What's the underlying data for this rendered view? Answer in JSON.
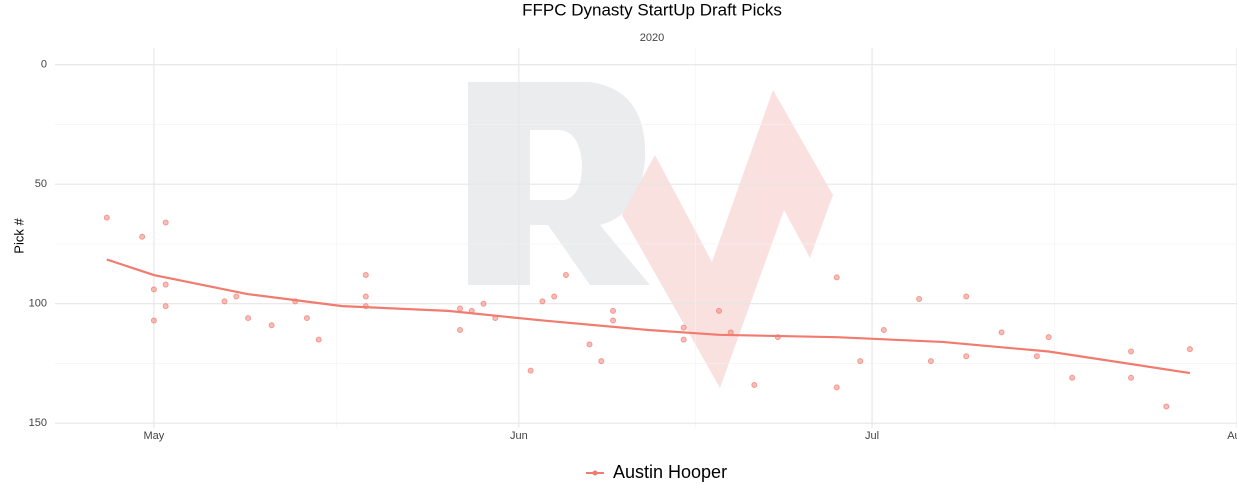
{
  "chart_data": {
    "type": "scatter",
    "title": "FFPC Dynasty StartUp Draft Picks",
    "subtitle": "2020",
    "y_label": "Pick #",
    "xlim": [
      113.6,
      214
    ],
    "xticks": [
      {
        "value": 122,
        "label": "May"
      },
      {
        "value": 153,
        "label": "Jun"
      },
      {
        "value": 183,
        "label": "Jul"
      },
      {
        "value": 214,
        "label": "Aug"
      }
    ],
    "ylim": [
      -7,
      152
    ],
    "yticks": [
      0,
      50,
      100,
      150
    ],
    "y_reversed": true,
    "grid": true,
    "legend": "bottom",
    "series": [
      {
        "name": "Austin Hooper",
        "color": "#f07b6e",
        "x": [
          118,
          121,
          122,
          122,
          123,
          123,
          123,
          128,
          129,
          130,
          132,
          134,
          135,
          136,
          140,
          140,
          140,
          148,
          148,
          149,
          150,
          151,
          154,
          155,
          156,
          157,
          159,
          160,
          161,
          161,
          167,
          167,
          170,
          171,
          173,
          175,
          180,
          180,
          182,
          184,
          187,
          188,
          191,
          191,
          194,
          197,
          198,
          200,
          205,
          205,
          208,
          210
        ],
        "values": [
          64,
          72,
          94,
          107,
          66,
          92,
          101,
          99,
          97,
          106,
          109,
          99,
          106,
          115,
          88,
          97,
          101,
          102,
          111,
          103,
          100,
          106,
          128,
          99,
          97,
          88,
          117,
          124,
          103,
          107,
          110,
          115,
          103,
          112,
          134,
          114,
          89,
          135,
          124,
          111,
          98,
          124,
          97,
          122,
          112,
          122,
          114,
          131,
          120,
          131,
          143,
          119
        ],
        "trend": {
          "x": [
            118,
            122,
            130,
            138,
            147,
            155,
            164,
            170,
            180,
            189,
            198,
            210
          ],
          "values": [
            81.5,
            88,
            96,
            101,
            103,
            107,
            111,
            113,
            114,
            116,
            120,
            129
          ]
        }
      }
    ]
  }
}
